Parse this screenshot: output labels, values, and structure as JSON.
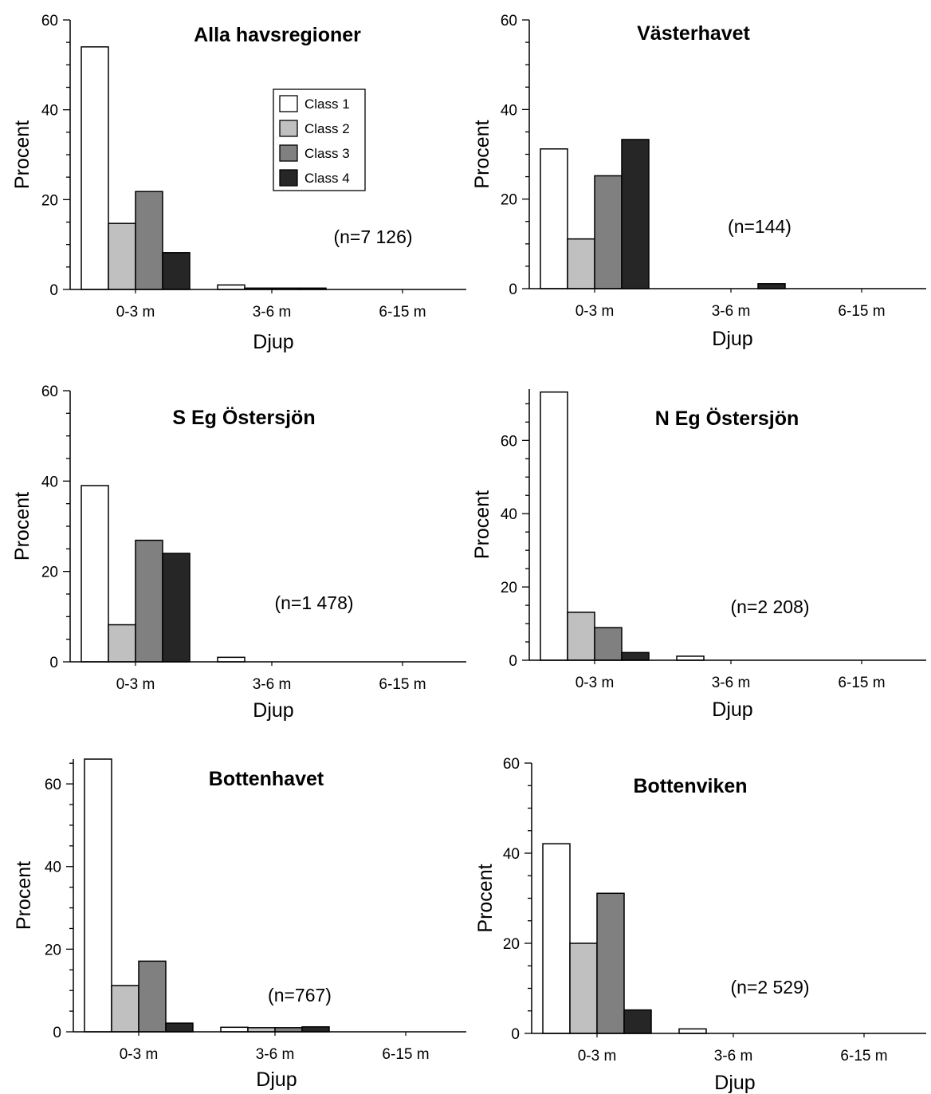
{
  "chart_data": [
    {
      "type": "bar",
      "title": "Alla havsregioner",
      "xlabel": "Djup",
      "ylabel": "Procent",
      "categories": [
        "0-3 m",
        "3-6 m",
        "6-15 m"
      ],
      "ylim": [
        0,
        60
      ],
      "yticks": [
        "0",
        "20",
        "40",
        "60"
      ],
      "annotation": "(n=7 126)",
      "series": [
        {
          "name": "Class 1",
          "values": [
            54,
            1,
            0
          ]
        },
        {
          "name": "Class 2",
          "values": [
            14.7,
            0.3,
            0
          ]
        },
        {
          "name": "Class 3",
          "values": [
            21.8,
            0.3,
            0
          ]
        },
        {
          "name": "Class 4",
          "values": [
            8.2,
            0.3,
            0
          ]
        }
      ],
      "legend": {
        "placement": "top-center",
        "entries": [
          "Class 1",
          "Class 2",
          "Class 3",
          "Class 4"
        ]
      }
    },
    {
      "type": "bar",
      "title": "Västerhavet",
      "xlabel": "Djup",
      "ylabel": "Procent",
      "categories": [
        "0-3 m",
        "3-6 m",
        "6-15 m"
      ],
      "ylim": [
        0,
        60
      ],
      "yticks": [
        "0",
        "20",
        "40",
        "60"
      ],
      "annotation": "(n=144)",
      "series": [
        {
          "name": "Class 1",
          "values": [
            31.2,
            0,
            0
          ]
        },
        {
          "name": "Class 2",
          "values": [
            11.1,
            0,
            0
          ]
        },
        {
          "name": "Class 3",
          "values": [
            25.2,
            0,
            0
          ]
        },
        {
          "name": "Class 4",
          "values": [
            33.3,
            1.1,
            0
          ]
        }
      ]
    },
    {
      "type": "bar",
      "title": "S Eg Östersjön",
      "xlabel": "Djup",
      "ylabel": "Procent",
      "categories": [
        "0-3 m",
        "3-6 m",
        "6-15 m"
      ],
      "ylim": [
        0,
        60
      ],
      "yticks": [
        "0",
        "20",
        "40",
        "60"
      ],
      "annotation": "(n=1 478)",
      "series": [
        {
          "name": "Class 1",
          "values": [
            39,
            1,
            0
          ]
        },
        {
          "name": "Class 2",
          "values": [
            8.2,
            0,
            0
          ]
        },
        {
          "name": "Class 3",
          "values": [
            26.9,
            0,
            0
          ]
        },
        {
          "name": "Class 4",
          "values": [
            24,
            0,
            0
          ]
        }
      ]
    },
    {
      "type": "bar",
      "title": "N Eg Östersjön",
      "xlabel": "Djup",
      "ylabel": "Procent",
      "categories": [
        "0-3 m",
        "3-6 m",
        "6-15 m"
      ],
      "ylim": [
        0,
        74
      ],
      "yticks": [
        "0",
        "20",
        "40",
        "60"
      ],
      "annotation": "(n=2 208)",
      "series": [
        {
          "name": "Class 1",
          "values": [
            73.2,
            1.1,
            0
          ]
        },
        {
          "name": "Class 2",
          "values": [
            13.1,
            0,
            0
          ]
        },
        {
          "name": "Class 3",
          "values": [
            8.9,
            0,
            0
          ]
        },
        {
          "name": "Class 4",
          "values": [
            2.1,
            0,
            0
          ]
        }
      ]
    },
    {
      "type": "bar",
      "title": "Bottenhavet",
      "xlabel": "Djup",
      "ylabel": "Procent",
      "categories": [
        "0-3 m",
        "3-6 m",
        "6-15 m"
      ],
      "ylim": [
        0,
        66
      ],
      "yticks": [
        "0",
        "20",
        "40",
        "60"
      ],
      "annotation": "(n=767)",
      "series": [
        {
          "name": "Class 1",
          "values": [
            66,
            1.1,
            0
          ]
        },
        {
          "name": "Class 2",
          "values": [
            11.2,
            1,
            0
          ]
        },
        {
          "name": "Class 3",
          "values": [
            17.1,
            1,
            0
          ]
        },
        {
          "name": "Class 4",
          "values": [
            2.1,
            1.2,
            0
          ]
        }
      ]
    },
    {
      "type": "bar",
      "title": "Bottenviken",
      "xlabel": "Djup",
      "ylabel": "Procent",
      "categories": [
        "0-3 m",
        "3-6 m",
        "6-15 m"
      ],
      "ylim": [
        0,
        60
      ],
      "yticks": [
        "0",
        "20",
        "40",
        "60"
      ],
      "annotation": "(n=2 529)",
      "series": [
        {
          "name": "Class 1",
          "values": [
            42.1,
            1,
            0
          ]
        },
        {
          "name": "Class 2",
          "values": [
            20,
            0,
            0
          ]
        },
        {
          "name": "Class 3",
          "values": [
            31.1,
            0,
            0
          ]
        },
        {
          "name": "Class 4",
          "values": [
            5.2,
            0,
            0
          ]
        }
      ]
    }
  ],
  "series_colors": [
    "#ffffff",
    "#c0c0c0",
    "#808080",
    "#262626"
  ]
}
